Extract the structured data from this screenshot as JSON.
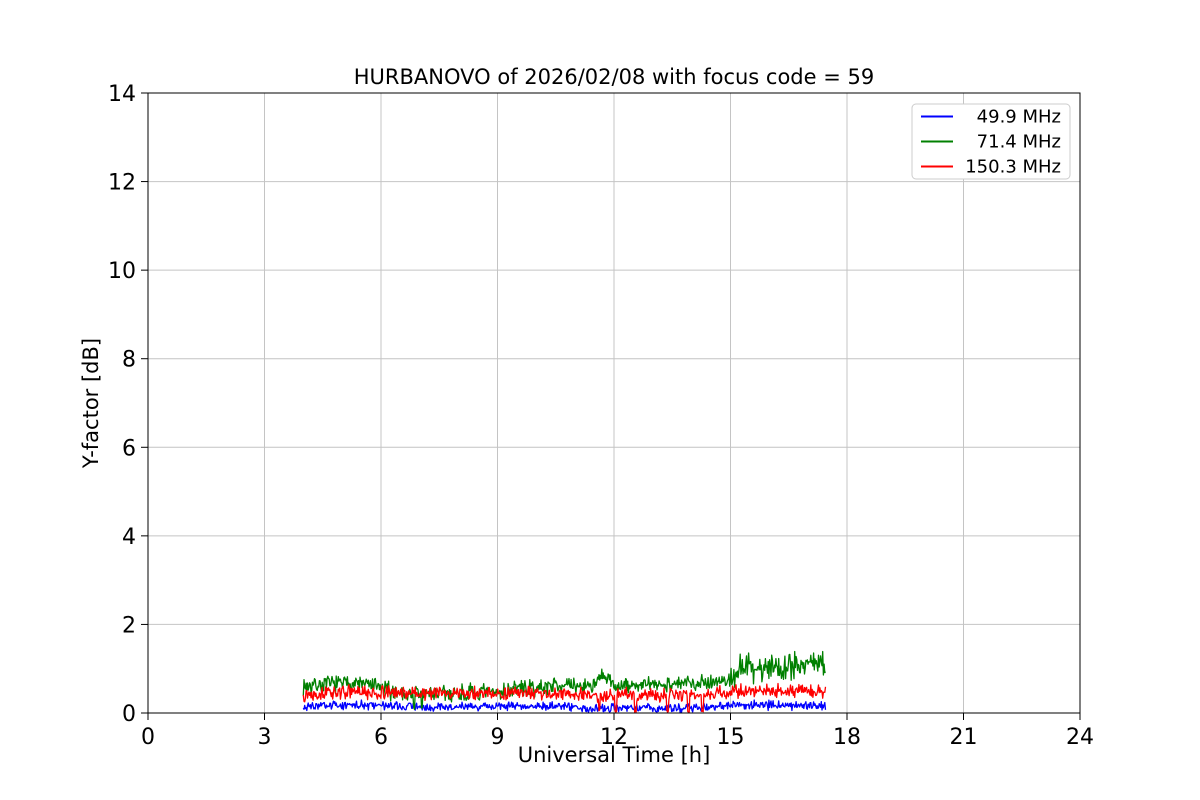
{
  "chart_data": {
    "type": "line",
    "title": "HURBANOVO of 2026/02/08 with focus code = 59",
    "xlabel": "Universal Time [h]",
    "ylabel": "Y-factor [dB]",
    "xlim": [
      0,
      24
    ],
    "ylim": [
      0,
      14
    ],
    "xticks": [
      0,
      3,
      6,
      9,
      12,
      15,
      18,
      21,
      24
    ],
    "yticks": [
      0,
      2,
      4,
      6,
      8,
      10,
      12,
      14
    ],
    "grid": true,
    "grid_color": "#c4c4c4",
    "spine_color": "#000000",
    "background_color": "#ffffff",
    "legend_position": "upper right",
    "legend_border_color": "#cccccc",
    "x_start": 4.0,
    "x_end": 17.45,
    "x_step": 0.25,
    "note": "Noisy time-series; 'center' is band midline in dB sampled every 0.25 h from x_start, 'spread' is half-width of noise band, 'dips' are thin downward spikes.",
    "series": [
      {
        "name": "49.9 MHz",
        "color": "#0000ff",
        "seed": 3,
        "center": [
          0.14,
          0.15,
          0.16,
          0.15,
          0.17,
          0.2,
          0.19,
          0.17,
          0.16,
          0.15,
          0.14,
          0.15,
          0.14,
          0.15,
          0.14,
          0.13,
          0.14,
          0.15,
          0.14,
          0.15,
          0.14,
          0.16,
          0.17,
          0.15,
          0.14,
          0.15,
          0.16,
          0.14,
          0.13,
          0.12,
          0.12,
          0.11,
          0.12,
          0.12,
          0.11,
          0.12,
          0.12,
          0.11,
          0.12,
          0.12,
          0.13,
          0.13,
          0.14,
          0.15,
          0.17,
          0.18,
          0.17,
          0.18,
          0.17,
          0.18,
          0.17,
          0.18,
          0.17,
          0.17,
          0.16
        ],
        "spread": [
          0.08,
          0.08,
          0.08,
          0.08,
          0.08,
          0.08,
          0.08,
          0.08,
          0.08,
          0.08,
          0.08,
          0.08,
          0.08,
          0.08,
          0.08,
          0.08,
          0.08,
          0.08,
          0.08,
          0.08,
          0.08,
          0.08,
          0.08,
          0.08,
          0.08,
          0.08,
          0.08,
          0.08,
          0.08,
          0.08,
          0.08,
          0.08,
          0.08,
          0.08,
          0.08,
          0.08,
          0.08,
          0.08,
          0.08,
          0.08,
          0.08,
          0.08,
          0.08,
          0.08,
          0.08,
          0.08,
          0.08,
          0.08,
          0.08,
          0.08,
          0.08,
          0.08,
          0.08,
          0.08,
          0.08
        ],
        "dips": [
          {
            "x": 11.9,
            "to": 0.02
          },
          {
            "x": 12.62,
            "to": 0.02
          },
          {
            "x": 13.1,
            "to": 0.02
          },
          {
            "x": 14.02,
            "to": 0.02
          }
        ]
      },
      {
        "name": "71.4 MHz",
        "color": "#008000",
        "seed": 7,
        "center": [
          0.6,
          0.63,
          0.64,
          0.66,
          0.66,
          0.68,
          0.66,
          0.62,
          0.55,
          0.48,
          0.45,
          0.43,
          0.42,
          0.44,
          0.43,
          0.44,
          0.45,
          0.44,
          0.43,
          0.45,
          0.46,
          0.5,
          0.58,
          0.56,
          0.55,
          0.6,
          0.66,
          0.62,
          0.6,
          0.62,
          0.64,
          0.82,
          0.62,
          0.6,
          0.62,
          0.64,
          0.63,
          0.65,
          0.66,
          0.66,
          0.68,
          0.7,
          0.72,
          0.72,
          0.76,
          1.0,
          1.04,
          1.0,
          1.06,
          1.04,
          1.08,
          1.1,
          1.14,
          1.1,
          1.06
        ],
        "spread": [
          0.15,
          0.15,
          0.15,
          0.15,
          0.15,
          0.15,
          0.15,
          0.15,
          0.17,
          0.17,
          0.17,
          0.17,
          0.17,
          0.17,
          0.17,
          0.17,
          0.17,
          0.17,
          0.17,
          0.17,
          0.17,
          0.17,
          0.14,
          0.14,
          0.14,
          0.14,
          0.14,
          0.14,
          0.14,
          0.14,
          0.14,
          0.2,
          0.14,
          0.14,
          0.14,
          0.14,
          0.14,
          0.14,
          0.14,
          0.14,
          0.14,
          0.14,
          0.14,
          0.14,
          0.18,
          0.27,
          0.27,
          0.27,
          0.28,
          0.28,
          0.28,
          0.28,
          0.28,
          0.28,
          0.27
        ],
        "dips": [
          {
            "x": 6.85,
            "to": 0.07
          },
          {
            "x": 7.05,
            "to": 0.1
          }
        ]
      },
      {
        "name": "150.3 MHz",
        "color": "#ff0000",
        "seed": 13,
        "center": [
          0.42,
          0.45,
          0.44,
          0.46,
          0.47,
          0.48,
          0.46,
          0.44,
          0.45,
          0.46,
          0.47,
          0.45,
          0.44,
          0.46,
          0.45,
          0.44,
          0.45,
          0.46,
          0.44,
          0.45,
          0.43,
          0.44,
          0.46,
          0.44,
          0.42,
          0.43,
          0.44,
          0.42,
          0.41,
          0.42,
          0.4,
          0.38,
          0.4,
          0.41,
          0.4,
          0.42,
          0.41,
          0.4,
          0.42,
          0.41,
          0.42,
          0.43,
          0.44,
          0.45,
          0.48,
          0.5,
          0.49,
          0.5,
          0.48,
          0.5,
          0.49,
          0.5,
          0.51,
          0.5,
          0.49
        ],
        "spread": [
          0.12,
          0.12,
          0.12,
          0.12,
          0.12,
          0.12,
          0.12,
          0.12,
          0.12,
          0.12,
          0.12,
          0.12,
          0.12,
          0.12,
          0.12,
          0.12,
          0.12,
          0.12,
          0.12,
          0.12,
          0.12,
          0.12,
          0.12,
          0.12,
          0.12,
          0.12,
          0.12,
          0.12,
          0.12,
          0.12,
          0.12,
          0.12,
          0.12,
          0.12,
          0.12,
          0.12,
          0.12,
          0.12,
          0.12,
          0.12,
          0.12,
          0.12,
          0.12,
          0.12,
          0.12,
          0.12,
          0.12,
          0.12,
          0.12,
          0.12,
          0.12,
          0.12,
          0.12,
          0.12,
          0.12
        ],
        "dips": [
          {
            "x": 11.62,
            "to": 0.02
          },
          {
            "x": 12.05,
            "to": 0.02
          },
          {
            "x": 12.55,
            "to": 0.02
          },
          {
            "x": 13.38,
            "to": 0.02
          },
          {
            "x": 13.92,
            "to": 0.02
          },
          {
            "x": 14.28,
            "to": 0.02
          }
        ]
      }
    ]
  }
}
